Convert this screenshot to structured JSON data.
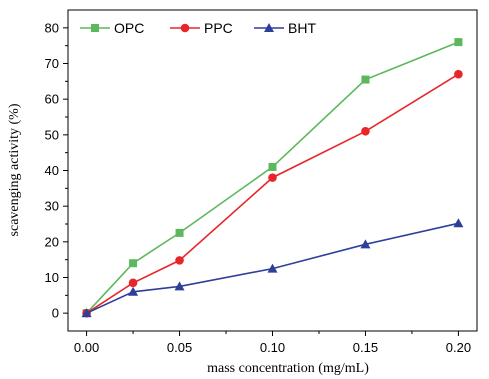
{
  "chart_data": {
    "type": "line",
    "title": "",
    "xlabel": "mass concentration (mg/mL)",
    "ylabel": "scavenging activity (%)",
    "xlim": [
      -0.01,
      0.21
    ],
    "ylim": [
      -5,
      85
    ],
    "x_ticks": [
      "0.00",
      "0.05",
      "0.10",
      "0.15",
      "0.20"
    ],
    "y_ticks": [
      "0",
      "10",
      "20",
      "30",
      "40",
      "50",
      "60",
      "70",
      "80"
    ],
    "x": [
      0,
      0.025,
      0.05,
      0.1,
      0.15,
      0.2
    ],
    "grid": false,
    "legend_position": "top-left",
    "series": [
      {
        "name": "OPC",
        "color": "#5cb85c",
        "marker": "square",
        "values": [
          0,
          14,
          22.5,
          41,
          65.5,
          76
        ]
      },
      {
        "name": "PPC",
        "color": "#e8262a",
        "marker": "circle",
        "values": [
          0,
          8.5,
          14.8,
          38,
          51,
          67
        ]
      },
      {
        "name": "BHT",
        "color": "#2e3f9a",
        "marker": "triangle",
        "values": [
          0,
          6,
          7.5,
          12.5,
          19.3,
          25.2
        ]
      }
    ]
  }
}
